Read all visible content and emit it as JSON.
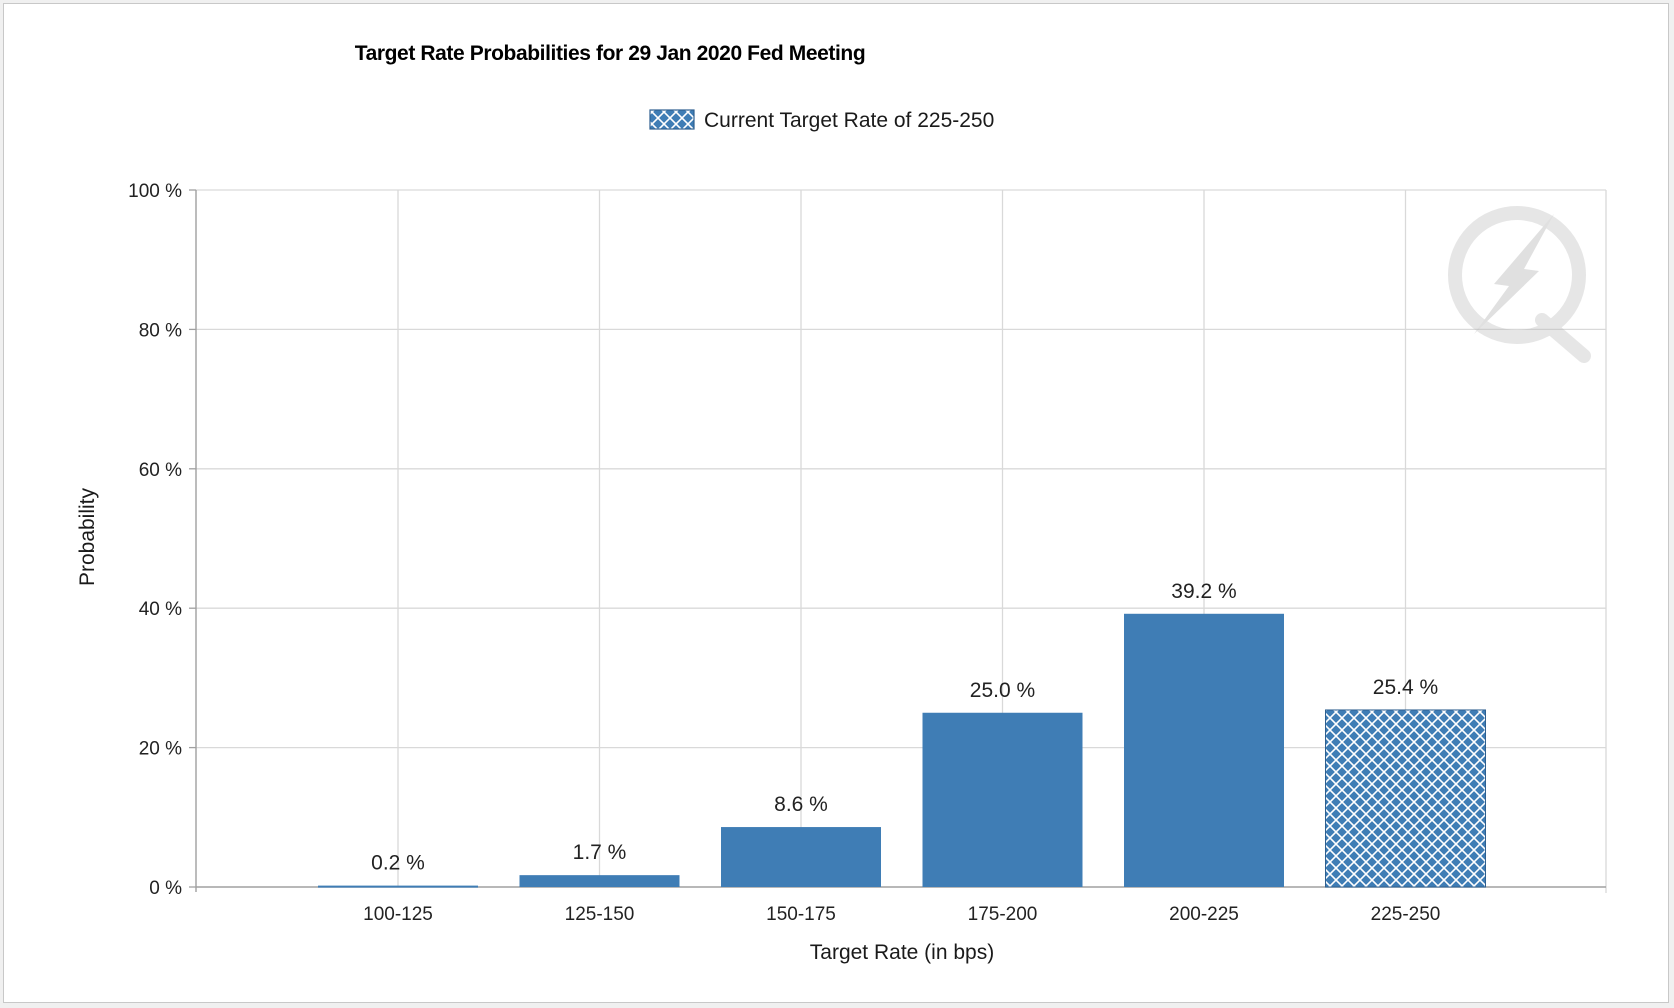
{
  "chart_data": {
    "type": "bar",
    "title": "Target Rate Probabilities for 29 Jan 2020 Fed Meeting",
    "legend": {
      "label": "Current Target Rate of 225-250",
      "placement": "top-center"
    },
    "xlabel": "Target Rate (in bps)",
    "ylabel": "Probability",
    "categories": [
      "100-125",
      "125-150",
      "150-175",
      "175-200",
      "200-225",
      "225-250"
    ],
    "values": [
      0.2,
      1.7,
      8.6,
      25.0,
      39.2,
      25.4
    ],
    "data_labels": [
      "0.2 %",
      "1.7 %",
      "8.6 %",
      "25.0 %",
      "39.2 %",
      "25.4 %"
    ],
    "ylim": [
      0,
      100
    ],
    "yticks": [
      0,
      20,
      40,
      60,
      80,
      100
    ],
    "ytick_labels": [
      "0 %",
      "20 %",
      "40 %",
      "60 %",
      "80 %",
      "100 %"
    ],
    "highlight_category": "225-250",
    "highlight_style": "crosshatch",
    "grid": true,
    "colors": {
      "bar": "#3f7db5",
      "grid": "#d9d9d9",
      "axis": "#a0a0a0"
    },
    "watermark_icon": "quikstrike-logo-icon"
  }
}
